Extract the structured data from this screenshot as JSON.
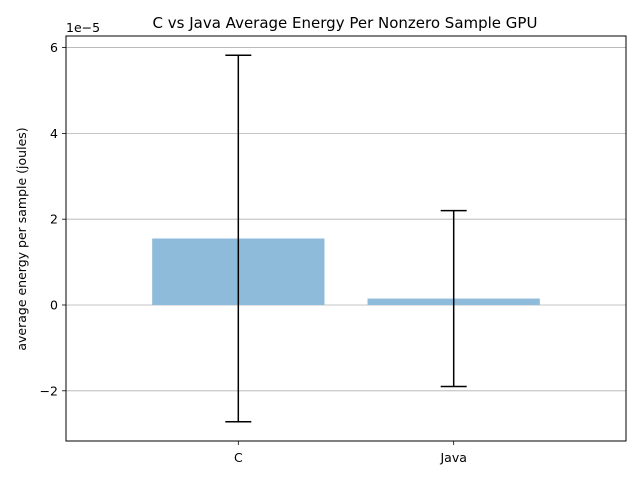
{
  "chart_data": {
    "type": "bar",
    "title": "C vs Java Average Energy Per Nonzero Sample GPU",
    "xlabel": "",
    "ylabel": "average energy per sample (joules)",
    "offset_label": "1e−5",
    "categories": [
      "C",
      "Java"
    ],
    "values": [
      1.55e-05,
      1.5e-06
    ],
    "error": [
      4.27e-05,
      2.05e-05
    ],
    "ylim": [
      -3.17e-05,
      6.27e-05
    ],
    "yticks": [
      -2e-05,
      0,
      2e-05,
      4e-05,
      6e-05
    ],
    "ytick_labels": [
      "−2",
      "0",
      "2",
      "4",
      "6"
    ],
    "grid": "y",
    "colors": {
      "bar": "#8fbbdb",
      "error": "#000000",
      "grid": "#b0b0b0"
    }
  }
}
